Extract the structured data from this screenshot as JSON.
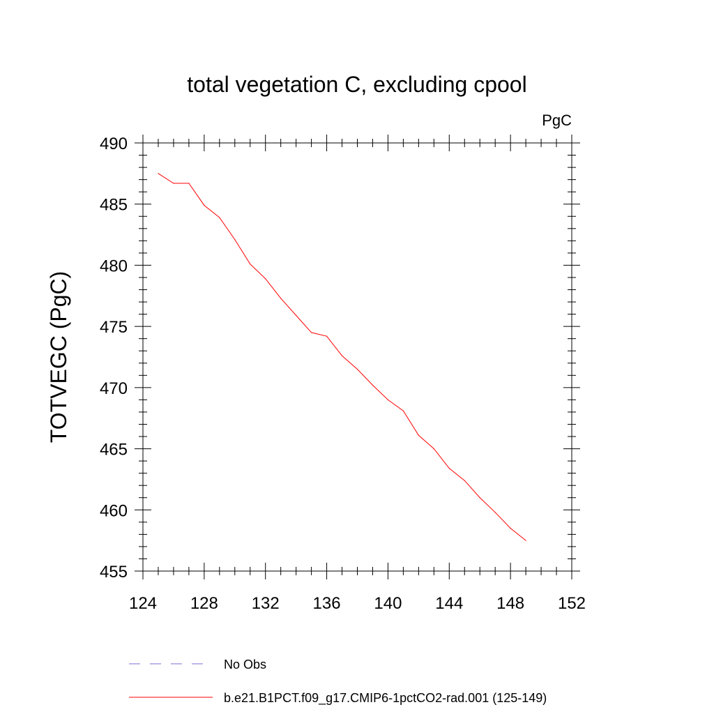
{
  "chart_data": {
    "type": "line",
    "title": "total vegetation C, excluding cpool",
    "units_label": "PgC",
    "xlabel": "",
    "ylabel": "TOTVEGC  (PgC)",
    "xlim": [
      124,
      152
    ],
    "ylim": [
      455,
      490
    ],
    "x_ticks": [
      124,
      128,
      132,
      136,
      140,
      144,
      148,
      152
    ],
    "y_ticks": [
      455,
      460,
      465,
      470,
      475,
      480,
      485,
      490
    ],
    "grid": false,
    "legend_position": "bottom",
    "series": [
      {
        "name": "No Obs",
        "color": "#7b6fd6",
        "style": "dashed",
        "x": [],
        "y": []
      },
      {
        "name": "b.e21.B1PCT.f09_g17.CMIP6-1pctCO2-rad.001 (125-149)",
        "color": "#ff0000",
        "style": "solid",
        "x": [
          125,
          126,
          127,
          128,
          129,
          130,
          131,
          132,
          133,
          134,
          135,
          136,
          137,
          138,
          139,
          140,
          141,
          142,
          143,
          144,
          145,
          146,
          147,
          148,
          149
        ],
        "y": [
          487.5,
          486.7,
          486.7,
          484.9,
          483.9,
          482.1,
          480.1,
          478.9,
          477.3,
          475.9,
          474.5,
          474.2,
          472.6,
          471.5,
          470.2,
          469.0,
          468.1,
          466.1,
          465.0,
          463.4,
          462.4,
          461.0,
          459.8,
          458.5,
          457.5
        ]
      }
    ]
  }
}
